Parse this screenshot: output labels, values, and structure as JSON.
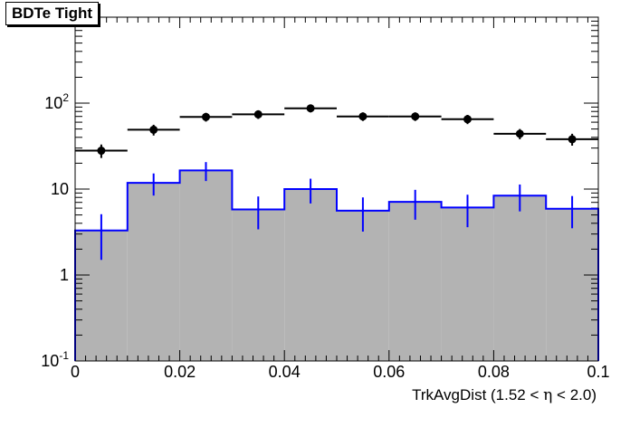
{
  "chart_data": {
    "type": "histogram",
    "title": "BDTe Tight",
    "xlabel_pre": "TrkAvgDist (1.52 < ",
    "xlabel_eta": "η",
    "xlabel_post": " < 2.0)",
    "ylabel": "",
    "xlim": [
      0,
      0.1
    ],
    "ylim": [
      0.1,
      1000
    ],
    "y_log_scale": true,
    "x_tick_labels": [
      "0",
      "0.02",
      "0.04",
      "0.06",
      "0.08",
      "0.1"
    ],
    "x_tick_values": [
      0,
      0.02,
      0.04,
      0.06,
      0.08,
      0.1
    ],
    "y_tick_values": [
      0.1,
      1,
      10,
      100
    ],
    "y_tick_labels": [
      {
        "base": "10",
        "exp": "-1"
      },
      {
        "base": "1",
        "exp": ""
      },
      {
        "base": "10",
        "exp": ""
      },
      {
        "base": "10",
        "exp": "2"
      }
    ],
    "bin_edges": [
      0,
      0.01,
      0.02,
      0.03,
      0.04,
      0.05,
      0.06,
      0.07,
      0.08,
      0.09,
      0.1
    ],
    "series": [
      {
        "style": "points",
        "color": "#000000",
        "values": [
          28,
          49,
          69,
          74,
          87,
          70,
          70,
          65,
          44,
          38
        ],
        "errors": [
          5,
          7,
          8,
          8.5,
          9,
          8,
          8,
          8,
          6,
          6
        ]
      },
      {
        "style": "filled-histogram",
        "color": "#0000ff",
        "fill": "#b3b3b3",
        "values": [
          3.3,
          11.8,
          16.5,
          5.8,
          10,
          5.6,
          7.1,
          6.1,
          8.4,
          5.9
        ],
        "errors": [
          1.8,
          3.4,
          4.1,
          2.4,
          3.2,
          2.4,
          2.7,
          2.5,
          2.9,
          2.4
        ]
      }
    ]
  }
}
